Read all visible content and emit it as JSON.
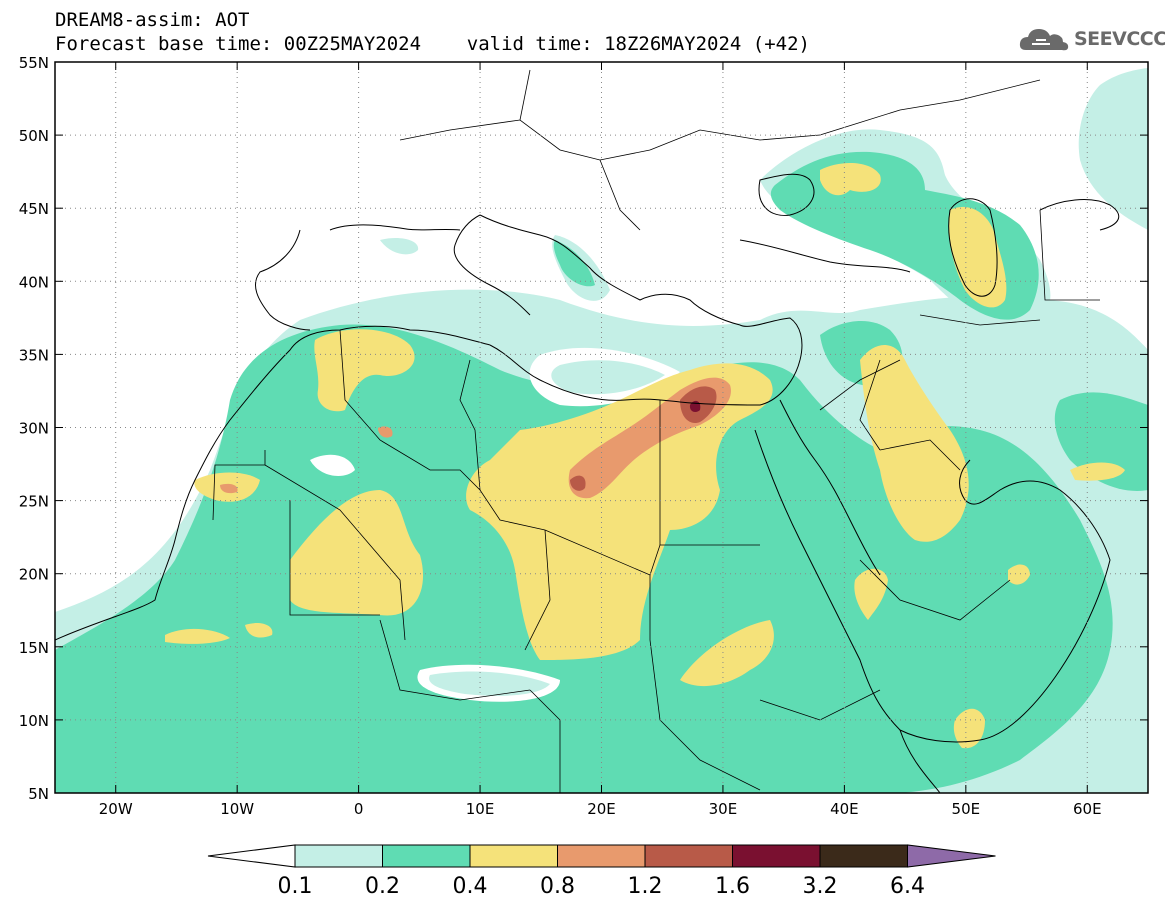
{
  "header": {
    "title_line1": "DREAM8-assim: AOT",
    "title_line2": "Forecast base time: 00Z25MAY2024    valid time: 18Z26MAY2024 (+42)"
  },
  "logo": {
    "text": "SEEVCCC",
    "icon": "cloud-icon"
  },
  "map": {
    "lon_range": [
      -25,
      65
    ],
    "lat_range": [
      5,
      55
    ],
    "lat_ticks": [
      "5N",
      "10N",
      "15N",
      "20N",
      "25N",
      "30N",
      "35N",
      "40N",
      "45N",
      "50N",
      "55N"
    ],
    "lon_ticks": [
      "20W",
      "10W",
      "0",
      "10E",
      "20E",
      "30E",
      "40E",
      "50E",
      "60E"
    ],
    "gridlines": "dotted",
    "field": "Aerosol Optical Thickness"
  },
  "colorbar": {
    "labels": [
      "0.1",
      "0.2",
      "0.4",
      "0.8",
      "1.2",
      "1.6",
      "3.2",
      "6.4"
    ],
    "colors": [
      "#ffffff",
      "#c4efe6",
      "#5fdcb3",
      "#f5e27a",
      "#e89a6d",
      "#b85a48",
      "#7a1030",
      "#3b2a1a",
      "#8e6aa8"
    ]
  }
}
